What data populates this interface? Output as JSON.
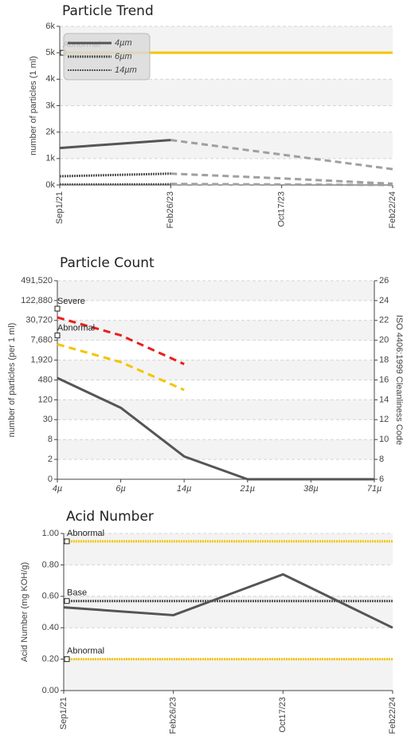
{
  "chart_data": [
    {
      "type": "line",
      "title": "Particle Trend",
      "y_label": "number of particles (1 ml)",
      "categories": [
        "Sep1/21",
        "Feb26/23",
        "Oct17/23",
        "Feb22/24"
      ],
      "ylim": [
        0,
        6000
      ],
      "yticks": [
        {
          "value": 0,
          "label": "0k"
        },
        {
          "value": 1000,
          "label": "1k"
        },
        {
          "value": 2000,
          "label": "2k"
        },
        {
          "value": 3000,
          "label": "3k"
        },
        {
          "value": 4000,
          "label": "4k"
        },
        {
          "value": 5000,
          "label": "5k"
        },
        {
          "value": 6000,
          "label": "6k"
        }
      ],
      "grid": true,
      "legend": "upper left",
      "thresholds": [
        {
          "label": "Abnormal",
          "value": 5000,
          "color": "#f5c400",
          "style": "solid"
        }
      ],
      "series": [
        {
          "name": "4µm",
          "color": "#555555",
          "style": "solid",
          "width": 3,
          "values": [
            1400,
            1700,
            null,
            null
          ],
          "projected": [
            null,
            1700,
            1150,
            600
          ]
        },
        {
          "name": "6µm",
          "color": "#555555",
          "style": "dotted",
          "width": 3,
          "values": [
            330,
            430,
            null,
            null
          ],
          "projected": [
            null,
            430,
            250,
            50
          ]
        },
        {
          "name": "14µm",
          "color": "#555555",
          "style": "dotted",
          "width": 2,
          "values": [
            30,
            40,
            null,
            null
          ],
          "projected": [
            null,
            40,
            20,
            0
          ]
        }
      ],
      "projected_color": "#a0a0a0"
    },
    {
      "type": "line",
      "title": "Particle Count",
      "y_label": "number of particles (per 1 ml)",
      "y2_label": "ISO 4406:1999 Cleanliness Code",
      "categories": [
        "4µ",
        "6µ",
        "14µ",
        "21µ",
        "38µ",
        "71µ"
      ],
      "ylim": [
        0,
        491520
      ],
      "yticks": [
        0,
        2,
        8,
        30,
        120,
        480,
        {
          "value": 1920,
          "label": "1,920"
        },
        {
          "value": 7680,
          "label": "7,680"
        },
        {
          "value": 30720,
          "label": "30,720"
        },
        {
          "value": 122880,
          "label": "122,880"
        },
        {
          "value": 491520,
          "label": "491,520"
        }
      ],
      "y2lim": [
        6,
        26
      ],
      "y2ticks": [
        6,
        8,
        10,
        12,
        14,
        16,
        18,
        20,
        22,
        24,
        26
      ],
      "grid": true,
      "series": [
        {
          "name": "Severe",
          "color": "#e8201c",
          "style": "dashed",
          "width": 3,
          "axis": "y2",
          "values": [
            22.3,
            20.5,
            17.6,
            null,
            null,
            null
          ]
        },
        {
          "name": "Abnormal",
          "color": "#f5c400",
          "style": "dashed",
          "width": 3,
          "axis": "y2",
          "values": [
            19.6,
            17.8,
            15.0,
            null,
            null,
            null
          ]
        },
        {
          "color": "#555555",
          "style": "solid",
          "width": 3,
          "axis": "y2",
          "values": [
            16.2,
            13.2,
            8.3,
            6,
            6,
            6
          ]
        }
      ]
    },
    {
      "type": "line",
      "title": "Acid Number",
      "y_label": "Acid Number (mg KOH/g)",
      "categories": [
        "Sep1/21",
        "Feb26/23",
        "Oct17/23",
        "Feb22/24"
      ],
      "ylim": [
        0,
        1
      ],
      "yticks": [
        {
          "value": 0,
          "label": "0.00"
        },
        {
          "value": 0.2,
          "label": "0.20"
        },
        {
          "value": 0.4,
          "label": "0.40"
        },
        {
          "value": 0.6,
          "label": "0.60"
        },
        {
          "value": 0.8,
          "label": "0.80"
        },
        {
          "value": 1,
          "label": "1.00"
        }
      ],
      "grid": true,
      "thresholds": [
        {
          "label": "Abnormal",
          "value": 0.95,
          "color": "#f5c400",
          "style": "dotted"
        },
        {
          "label": "Base",
          "value": 0.57,
          "color": "#555555",
          "style": "dotted"
        },
        {
          "label": "Abnormal",
          "value": 0.2,
          "color": "#f5c400",
          "style": "dotted"
        }
      ],
      "series": [
        {
          "color": "#555555",
          "style": "solid",
          "width": 3,
          "values": [
            0.53,
            0.48,
            0.74,
            0.4
          ]
        }
      ]
    }
  ]
}
